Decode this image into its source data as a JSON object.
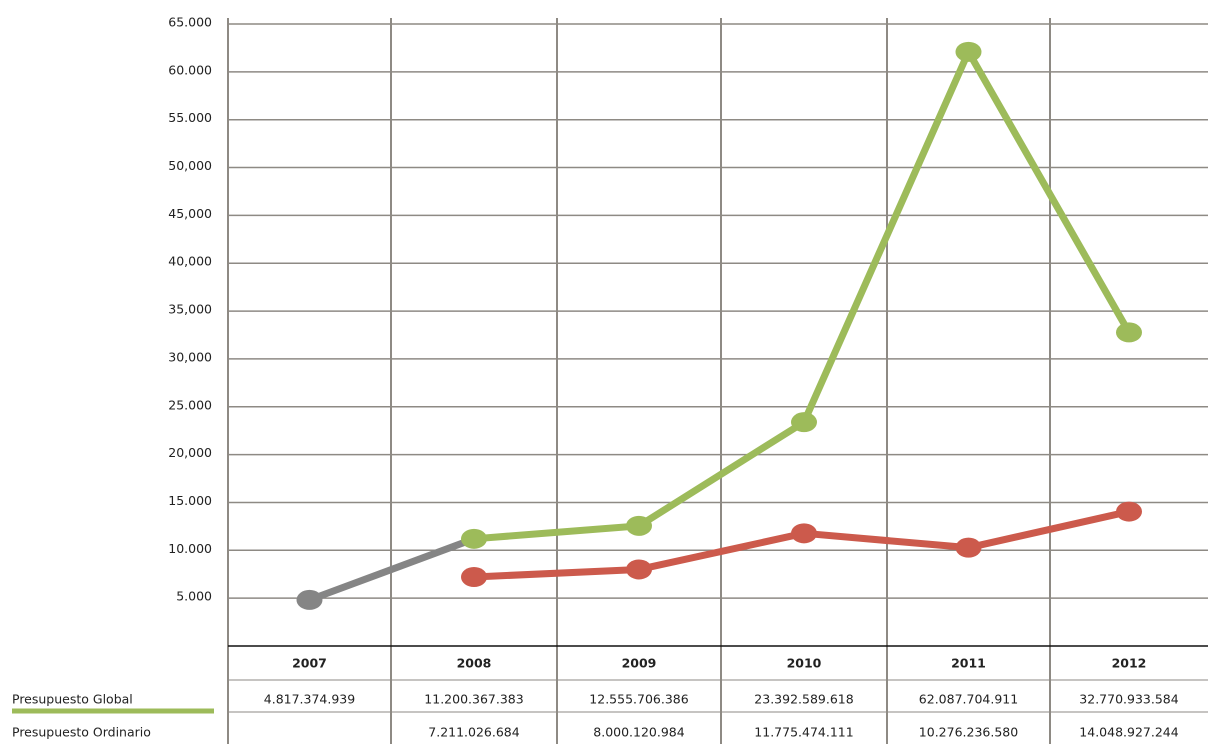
{
  "chart_data": {
    "type": "line",
    "categories": [
      "2007",
      "2008",
      "2009",
      "2010",
      "2011",
      "2012"
    ],
    "series": [
      {
        "name": "Presupuesto Global",
        "color": "#9dbb5a",
        "start_color": "#858585",
        "values": [
          4817.374939,
          11200.367383,
          12555.706386,
          23392.589618,
          62087.704911,
          32770.933584
        ],
        "value_labels": [
          "4.817.374.939",
          "11.200.367.383",
          "12.555.706.386",
          "23.392.589.618",
          "62.087.704.911",
          "32.770.933.584"
        ]
      },
      {
        "name": "Presupuesto Ordinario",
        "color": "#cc5a4c",
        "values": [
          null,
          7211.026684,
          8000.120984,
          11775.474111,
          10276.23658,
          14048.927244
        ],
        "value_labels": [
          null,
          "7.211.026.684",
          "8.000.120.984",
          "11.775.474.111",
          "10.276.236.580",
          "14.048.927.244"
        ]
      }
    ],
    "ylim": [
      0,
      65000
    ],
    "yticks": [
      {
        "value": 5000,
        "label": "5.000"
      },
      {
        "value": 10000,
        "label": "10.000"
      },
      {
        "value": 15000,
        "label": "15.000"
      },
      {
        "value": 20000,
        "label": "20,000"
      },
      {
        "value": 25000,
        "label": "25.000"
      },
      {
        "value": 30000,
        "label": "30,000"
      },
      {
        "value": 35000,
        "label": "35,000"
      },
      {
        "value": 40000,
        "label": "40,000"
      },
      {
        "value": 45000,
        "label": "45,000"
      },
      {
        "value": 50000,
        "label": "50,000"
      },
      {
        "value": 55000,
        "label": "55.000"
      },
      {
        "value": 60000,
        "label": "60.000"
      },
      {
        "value": 65000,
        "label": "65.000"
      }
    ],
    "grid": true
  }
}
